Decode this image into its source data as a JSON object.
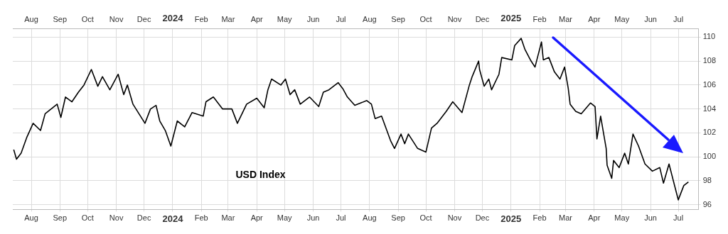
{
  "chart_data": {
    "type": "line",
    "annotations": [
      "USD Index"
    ],
    "x": [
      "2023-07-13",
      "2023-07-16",
      "2023-07-21",
      "2023-07-27",
      "2023-08-03",
      "2023-08-11",
      "2023-08-16",
      "2023-08-29",
      "2023-09-02",
      "2023-09-07",
      "2023-09-14",
      "2023-09-21",
      "2023-09-27",
      "2023-10-05",
      "2023-10-12",
      "2023-10-17",
      "2023-10-25",
      "2023-11-03",
      "2023-11-09",
      "2023-11-13",
      "2023-11-19",
      "2023-12-02",
      "2023-12-08",
      "2023-12-14",
      "2023-12-18",
      "2023-12-24",
      "2023-12-30",
      "2024-01-06",
      "2024-01-14",
      "2024-01-22",
      "2024-02-03",
      "2024-02-06",
      "2024-02-14",
      "2024-02-24",
      "2024-03-05",
      "2024-03-11",
      "2024-03-21",
      "2024-04-01",
      "2024-04-09",
      "2024-04-13",
      "2024-04-17",
      "2024-04-27",
      "2024-05-02",
      "2024-05-07",
      "2024-05-12",
      "2024-05-18",
      "2024-05-28",
      "2024-06-07",
      "2024-06-12",
      "2024-06-18",
      "2024-06-28",
      "2024-07-03",
      "2024-07-08",
      "2024-07-16",
      "2024-07-29",
      "2024-08-03",
      "2024-08-07",
      "2024-08-14",
      "2024-08-24",
      "2024-08-28",
      "2024-09-04",
      "2024-09-08",
      "2024-09-12",
      "2024-09-22",
      "2024-10-01",
      "2024-10-07",
      "2024-10-13",
      "2024-10-23",
      "2024-10-30",
      "2024-11-09",
      "2024-11-17",
      "2024-11-20",
      "2024-11-27",
      "2024-11-28",
      "2024-12-03",
      "2024-12-08",
      "2024-12-11",
      "2024-12-19",
      "2024-12-22",
      "2025-01-02",
      "2025-01-05",
      "2025-01-12",
      "2025-01-16",
      "2025-01-22",
      "2025-01-27",
      "2025-02-03",
      "2025-02-05",
      "2025-02-11",
      "2025-02-17",
      "2025-02-23",
      "2025-02-28",
      "2025-03-04",
      "2025-03-06",
      "2025-03-12",
      "2025-03-18",
      "2025-03-28",
      "2025-04-02",
      "2025-04-04",
      "2025-04-08",
      "2025-04-14",
      "2025-04-15",
      "2025-04-20",
      "2025-04-22",
      "2025-04-28",
      "2025-05-04",
      "2025-05-08",
      "2025-05-13",
      "2025-05-19",
      "2025-05-26",
      "2025-06-03",
      "2025-06-11",
      "2025-06-15",
      "2025-06-21",
      "2025-06-29",
      "2025-07-01",
      "2025-07-07",
      "2025-07-12"
    ],
    "series": [
      {
        "color": "#000000",
        "values": [
          100.6,
          99.8,
          100.3,
          101.6,
          102.8,
          102.2,
          103.6,
          104.4,
          103.3,
          105.0,
          104.6,
          105.4,
          106.0,
          107.3,
          105.9,
          106.7,
          105.6,
          106.9,
          105.2,
          106.0,
          104.4,
          102.8,
          104.0,
          104.3,
          103.0,
          102.2,
          100.9,
          103.0,
          102.5,
          103.7,
          103.4,
          104.6,
          105.0,
          104.0,
          104.0,
          102.8,
          104.4,
          104.9,
          104.1,
          105.6,
          106.5,
          106.0,
          106.5,
          105.2,
          105.6,
          104.4,
          105.0,
          104.2,
          105.4,
          105.6,
          106.2,
          105.7,
          105.0,
          104.3,
          104.7,
          104.4,
          103.2,
          103.4,
          101.3,
          100.7,
          101.9,
          101.1,
          101.9,
          100.7,
          100.4,
          102.4,
          102.8,
          103.8,
          104.6,
          103.7,
          106.0,
          106.7,
          108.0,
          107.3,
          105.9,
          106.5,
          105.6,
          106.9,
          108.3,
          108.1,
          109.3,
          109.9,
          109.0,
          108.1,
          107.5,
          109.6,
          108.1,
          108.3,
          107.1,
          106.5,
          107.5,
          105.7,
          104.4,
          103.8,
          103.6,
          104.5,
          104.2,
          101.5,
          103.4,
          100.7,
          99.3,
          98.2,
          99.7,
          99.1,
          100.3,
          99.4,
          101.9,
          100.9,
          99.4,
          98.8,
          99.1,
          97.8,
          99.4,
          97.0,
          96.4,
          97.6,
          97.9
        ]
      }
    ],
    "xlim": [
      "2023-07-12",
      "2025-07-23"
    ],
    "xticks": [
      {
        "value": "2023-08",
        "label": "Aug"
      },
      {
        "value": "2023-09",
        "label": "Sep"
      },
      {
        "value": "2023-10",
        "label": "Oct"
      },
      {
        "value": "2023-11",
        "label": "Nov"
      },
      {
        "value": "2023-12",
        "label": "Dec"
      },
      {
        "value": "2024-01",
        "label": "2024"
      },
      {
        "value": "2024-02",
        "label": "Feb"
      },
      {
        "value": "2024-03",
        "label": "Mar"
      },
      {
        "value": "2024-04",
        "label": "Apr"
      },
      {
        "value": "2024-05",
        "label": "May"
      },
      {
        "value": "2024-06",
        "label": "Jun"
      },
      {
        "value": "2024-07",
        "label": "Jul"
      },
      {
        "value": "2024-08",
        "label": "Aug"
      },
      {
        "value": "2024-09",
        "label": "Sep"
      },
      {
        "value": "2024-10",
        "label": "Oct"
      },
      {
        "value": "2024-11",
        "label": "Nov"
      },
      {
        "value": "2024-12",
        "label": "Dec"
      },
      {
        "value": "2025-01",
        "label": "2025"
      },
      {
        "value": "2025-02",
        "label": "Feb"
      },
      {
        "value": "2025-03",
        "label": "Mar"
      },
      {
        "value": "2025-04",
        "label": "Apr"
      },
      {
        "value": "2025-05",
        "label": "May"
      },
      {
        "value": "2025-06",
        "label": "Jun"
      },
      {
        "value": "2025-07",
        "label": "Jul"
      }
    ],
    "x2lim": [
      "2023-07-12",
      "2025-07-23"
    ],
    "x2ticks": [
      {
        "value": "2023-08",
        "label": "Aug"
      },
      {
        "value": "2023-09",
        "label": "Sep"
      },
      {
        "value": "2023-10",
        "label": "Oct"
      },
      {
        "value": "2023-11",
        "label": "Nov"
      },
      {
        "value": "2023-12",
        "label": "Dec"
      },
      {
        "value": "2024-01",
        "label": "2024"
      },
      {
        "value": "2024-02",
        "label": "Feb"
      },
      {
        "value": "2024-03",
        "label": "Mar"
      },
      {
        "value": "2024-04",
        "label": "Apr"
      },
      {
        "value": "2024-05",
        "label": "May"
      },
      {
        "value": "2024-06",
        "label": "Jun"
      },
      {
        "value": "2024-07",
        "label": "Jul"
      },
      {
        "value": "2024-08",
        "label": "Aug"
      },
      {
        "value": "2024-09",
        "label": "Sep"
      },
      {
        "value": "2024-10",
        "label": "Oct"
      },
      {
        "value": "2024-11",
        "label": "Nov"
      },
      {
        "value": "2024-12",
        "label": "Dec"
      },
      {
        "value": "2025-01",
        "label": "2025"
      },
      {
        "value": "2025-02",
        "label": "Feb"
      },
      {
        "value": "2025-03",
        "label": "Mar"
      },
      {
        "value": "2025-04",
        "label": "Apr"
      },
      {
        "value": "2025-05",
        "label": "May"
      },
      {
        "value": "2025-06",
        "label": "Jun"
      },
      {
        "value": "2025-07",
        "label": "Jul"
      }
    ],
    "ylim": [
      95.6,
      110.7
    ],
    "yticks": [
      96,
      98,
      100,
      102,
      104,
      106,
      108,
      110
    ],
    "grid": true,
    "marker": "none",
    "line_style": "solid"
  }
}
